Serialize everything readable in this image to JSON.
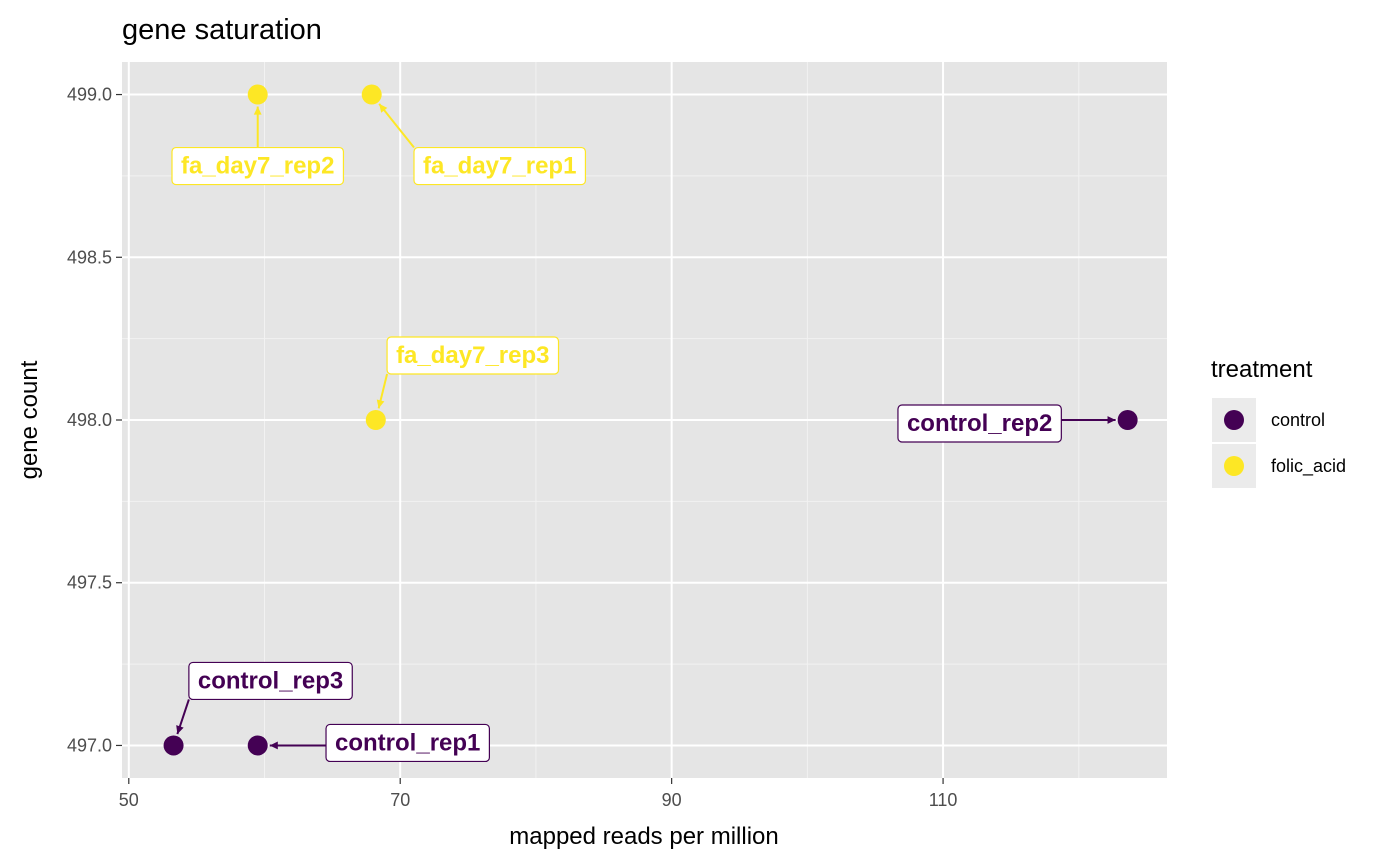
{
  "chart_data": {
    "type": "scatter",
    "title": "gene saturation",
    "xlabel": "mapped reads per million",
    "ylabel": "gene count",
    "xlim": [
      49.5,
      126.5
    ],
    "ylim": [
      496.9,
      499.1
    ],
    "x_ticks": [
      50,
      70,
      90,
      110
    ],
    "x_tick_labels": [
      "50",
      "70",
      "90",
      "110"
    ],
    "x_minor": [
      60,
      80,
      100,
      120
    ],
    "y_ticks": [
      497.0,
      497.5,
      498.0,
      498.5,
      499.0
    ],
    "y_tick_labels": [
      "497.0",
      "497.5",
      "498.0",
      "498.5",
      "499.0"
    ],
    "y_minor": [
      497.25,
      497.75,
      498.25,
      498.75
    ],
    "grid": true,
    "legend": {
      "title": "treatment",
      "position": "right",
      "entries": [
        {
          "name": "control",
          "color": "#440154"
        },
        {
          "name": "folic_acid",
          "color": "#FDE725"
        }
      ]
    },
    "points": [
      {
        "label": "fa_day7_rep2",
        "x": 59.5,
        "y": 499.0,
        "group": "folic_acid",
        "label_anchor": "below"
      },
      {
        "label": "fa_day7_rep1",
        "x": 67.9,
        "y": 499.0,
        "group": "folic_acid",
        "label_anchor": "below-right"
      },
      {
        "label": "fa_day7_rep3",
        "x": 68.2,
        "y": 498.0,
        "group": "folic_acid",
        "label_anchor": "above-right"
      },
      {
        "label": "control_rep2",
        "x": 123.6,
        "y": 498.0,
        "group": "control",
        "label_anchor": "left"
      },
      {
        "label": "control_rep3",
        "x": 53.3,
        "y": 497.0,
        "group": "control",
        "label_anchor": "above-right"
      },
      {
        "label": "control_rep1",
        "x": 59.5,
        "y": 497.0,
        "group": "control",
        "label_anchor": "right"
      }
    ]
  }
}
